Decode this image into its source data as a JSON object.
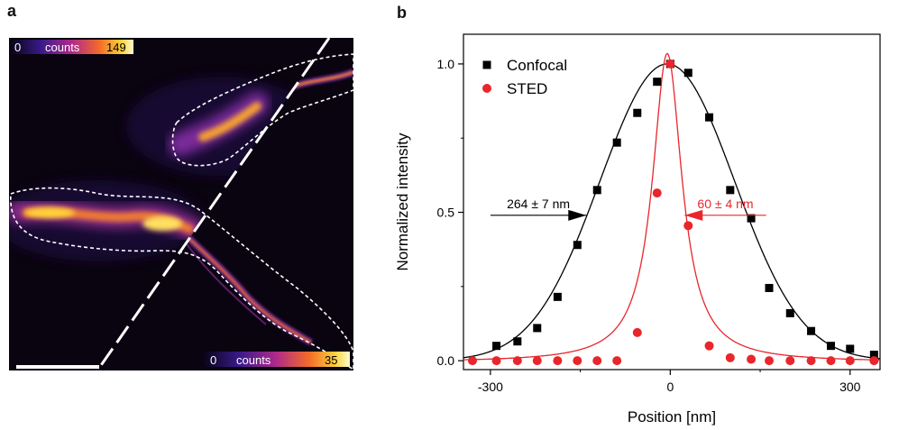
{
  "panel_a": {
    "label": "a",
    "colorbar_top": {
      "min": "0",
      "label": "counts",
      "max": "149"
    },
    "colorbar_bottom": {
      "min": "0",
      "label": "counts",
      "max": "35"
    },
    "scale_bar": true
  },
  "panel_b": {
    "label": "b"
  },
  "colors": {
    "confocal": "#000000",
    "sted": "#e8262b",
    "background_image": "#0a0410"
  },
  "chart_data": {
    "type": "scatter",
    "xlabel": "Position [nm]",
    "ylabel": "Normalized intensity",
    "xlim": [
      -345,
      350
    ],
    "ylim": [
      -0.03,
      1.1
    ],
    "xticks": [
      -300,
      0,
      300
    ],
    "xtick_labels": [
      "-300",
      "0",
      "300"
    ],
    "yticks": [
      0.0,
      0.5,
      1.0
    ],
    "ytick_labels": [
      "0.0",
      "0.5",
      "1.0"
    ],
    "legend_position": "top-left",
    "series": [
      {
        "name": "Confocal",
        "marker": "square",
        "x": [
          -290,
          -255,
          -222,
          -188,
          -155,
          -122,
          -89,
          -55,
          -22,
          0,
          30,
          65,
          100,
          135,
          165,
          200,
          235,
          268,
          300,
          340
        ],
        "y": [
          0.05,
          0.065,
          0.11,
          0.215,
          0.39,
          0.575,
          0.735,
          0.835,
          0.94,
          1.0,
          0.97,
          0.82,
          0.575,
          0.48,
          0.245,
          0.16,
          0.1,
          0.05,
          0.04,
          0.02
        ]
      },
      {
        "name": "STED",
        "marker": "circle",
        "x": [
          -330,
          -290,
          -255,
          -222,
          -188,
          -155,
          -122,
          -89,
          -55,
          -22,
          0,
          30,
          65,
          100,
          135,
          165,
          200,
          235,
          268,
          300,
          340
        ],
        "y": [
          0.0,
          0.0,
          0.0,
          0.0,
          0.0,
          0.0,
          0.0,
          0.0,
          0.095,
          0.565,
          1.0,
          0.455,
          0.05,
          0.01,
          0.005,
          0.0,
          0.0,
          0.0,
          0.0,
          0.0,
          0.0
        ]
      }
    ],
    "fits": [
      {
        "series": "Confocal",
        "shape": "gaussian",
        "center": -5,
        "amplitude": 1.0,
        "fwhm": 264,
        "offset": 0.0
      },
      {
        "series": "STED",
        "shape": "lorentzian",
        "center": -5,
        "amplitude": 1.04,
        "fwhm": 60,
        "offset": -0.005
      }
    ],
    "annotations": [
      {
        "text": "264 ± 7 nm",
        "series": "Confocal",
        "arrow": "right",
        "x_from": -300,
        "x_to": -140,
        "y": 0.49
      },
      {
        "text": "60 ± 4 nm",
        "series": "STED",
        "arrow": "left",
        "x_from": 160,
        "x_to": 24,
        "y": 0.49
      }
    ]
  }
}
